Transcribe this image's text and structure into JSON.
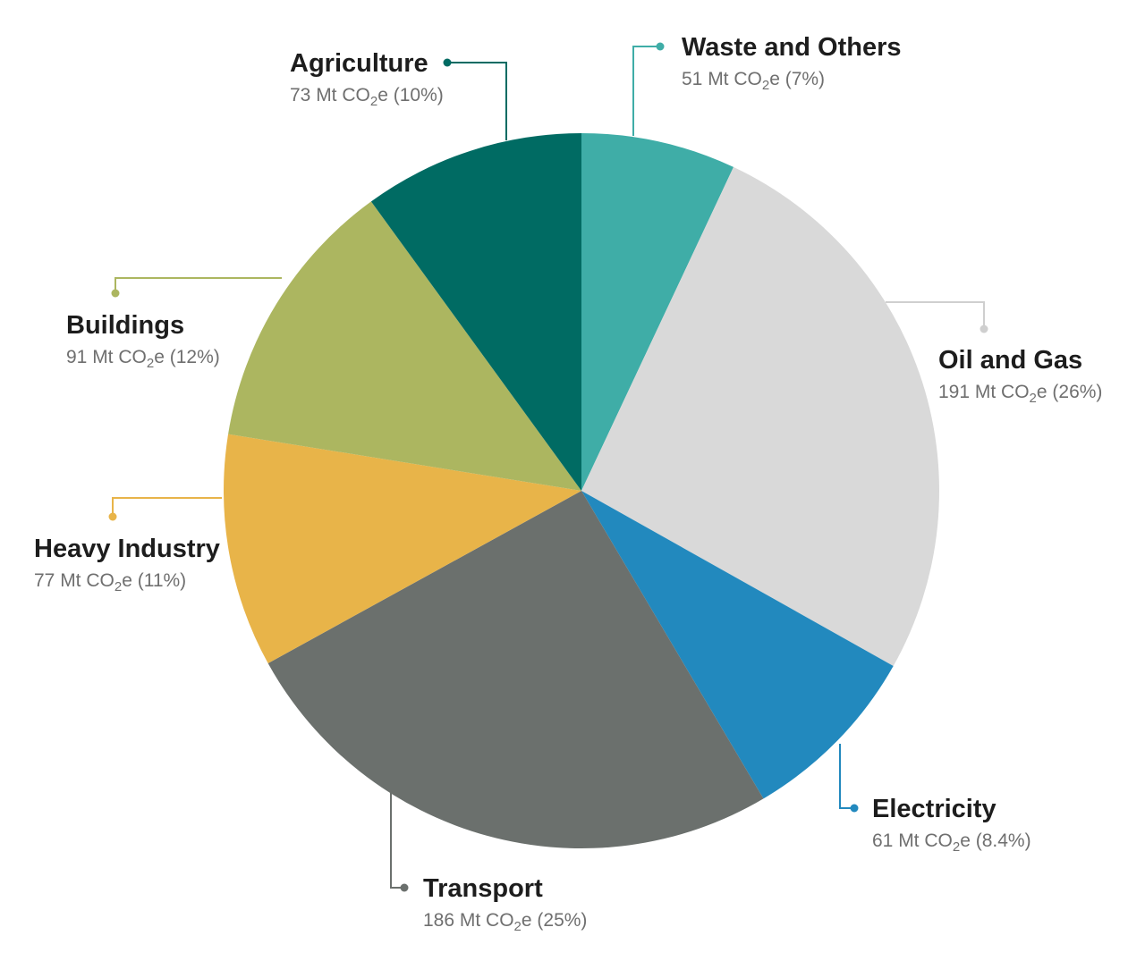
{
  "chart_data": {
    "type": "pie",
    "title": "",
    "unit": "Mt CO2e",
    "slices": [
      {
        "name": "Waste and Others",
        "value": 51,
        "value_label": "51 Mt CO",
        "sub": "2",
        "suffix": "e (7%)",
        "color": "#3fada7"
      },
      {
        "name": "Oil and Gas",
        "value": 191,
        "value_label": "191 Mt CO",
        "sub": "2",
        "suffix": "e (26%)",
        "color": "#d9d9d9",
        "leader_color": "#cfcfcf"
      },
      {
        "name": "Electricity",
        "value": 61,
        "value_label": "61 Mt CO",
        "sub": "2",
        "suffix": "e (8.4%)",
        "color": "#2289be"
      },
      {
        "name": "Transport",
        "value": 186,
        "value_label": "186 Mt CO",
        "sub": "2",
        "suffix": "e (25%)",
        "color": "#6b706d"
      },
      {
        "name": "Heavy Industry",
        "value": 77,
        "value_label": "77 Mt CO",
        "sub": "2",
        "suffix": "e (11%)",
        "color": "#e8b449"
      },
      {
        "name": "Buildings",
        "value": 91,
        "value_label": "91 Mt CO",
        "sub": "2",
        "suffix": "e (12%)",
        "color": "#acb660"
      },
      {
        "name": "Agriculture",
        "value": 73,
        "value_label": "73 Mt CO",
        "sub": "2",
        "suffix": "e (10%)",
        "color": "#006b63"
      }
    ]
  }
}
